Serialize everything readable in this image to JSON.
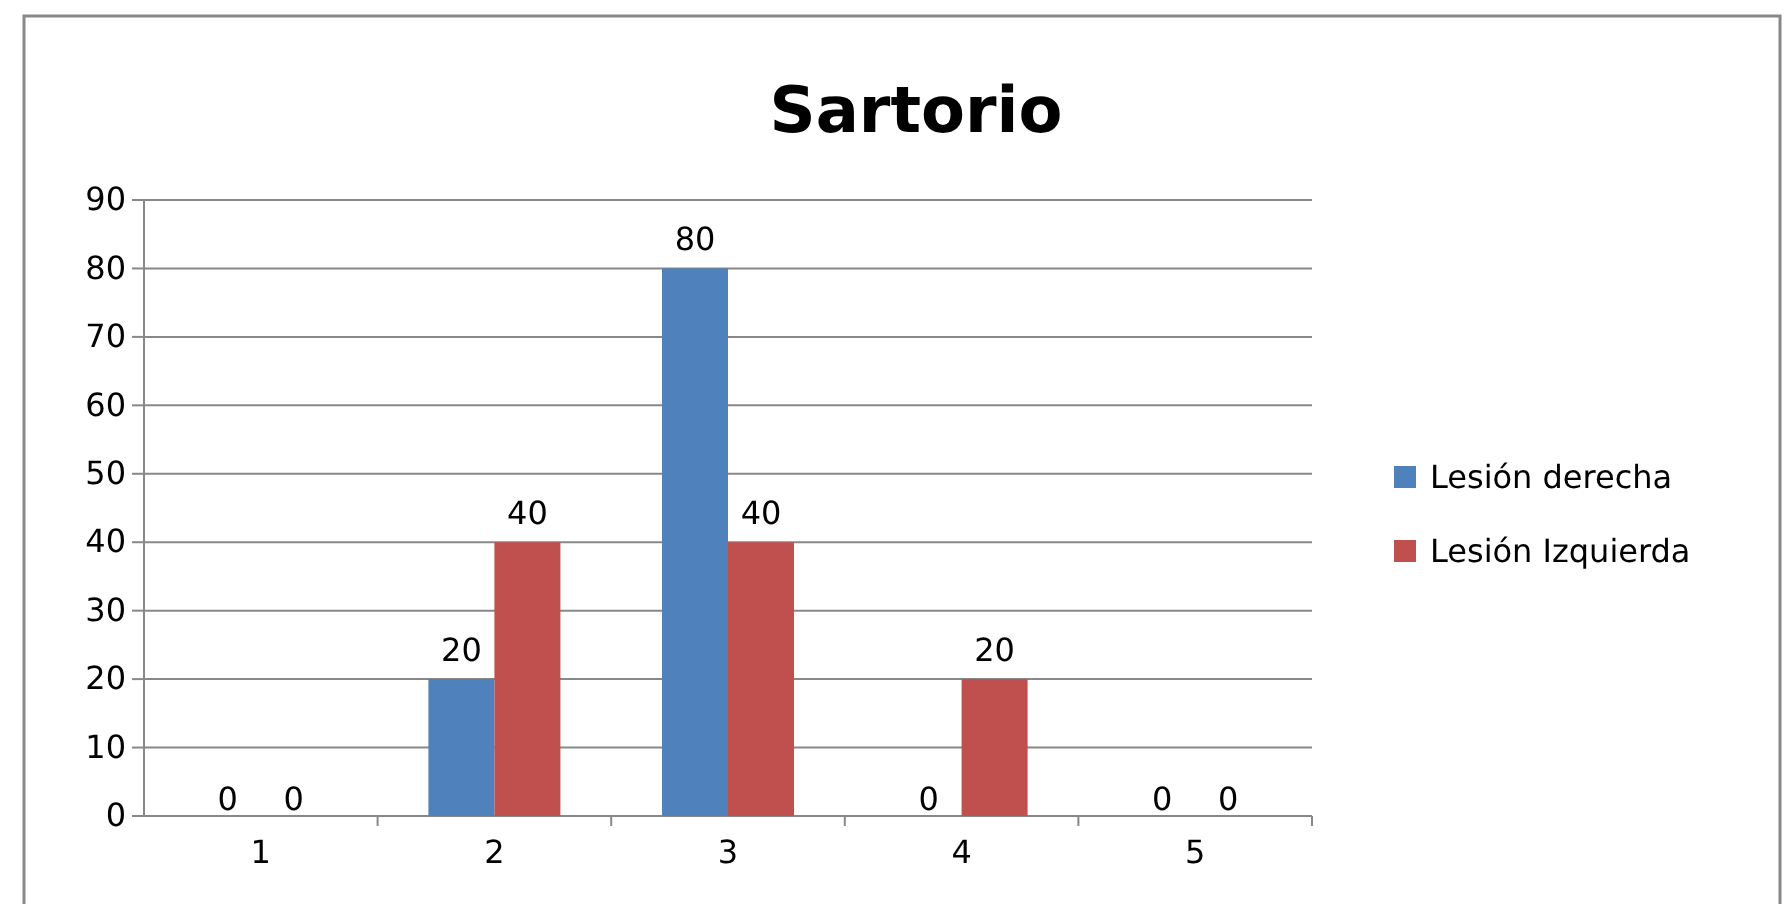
{
  "chart_data": {
    "type": "bar",
    "title": "Sartorio",
    "categories": [
      "1",
      "2",
      "3",
      "4",
      "5"
    ],
    "series": [
      {
        "name": "Lesión derecha",
        "color": "#4f81bd",
        "values": [
          0,
          20,
          80,
          0,
          0
        ]
      },
      {
        "name": "Lesión Izquierda",
        "color": "#c0504d",
        "values": [
          0,
          40,
          40,
          20,
          0
        ]
      }
    ],
    "ylim": [
      0,
      90
    ],
    "yticks": [
      0,
      10,
      20,
      30,
      40,
      50,
      60,
      70,
      80,
      90
    ],
    "grid": "y",
    "legend": "right",
    "data_labels": true
  }
}
